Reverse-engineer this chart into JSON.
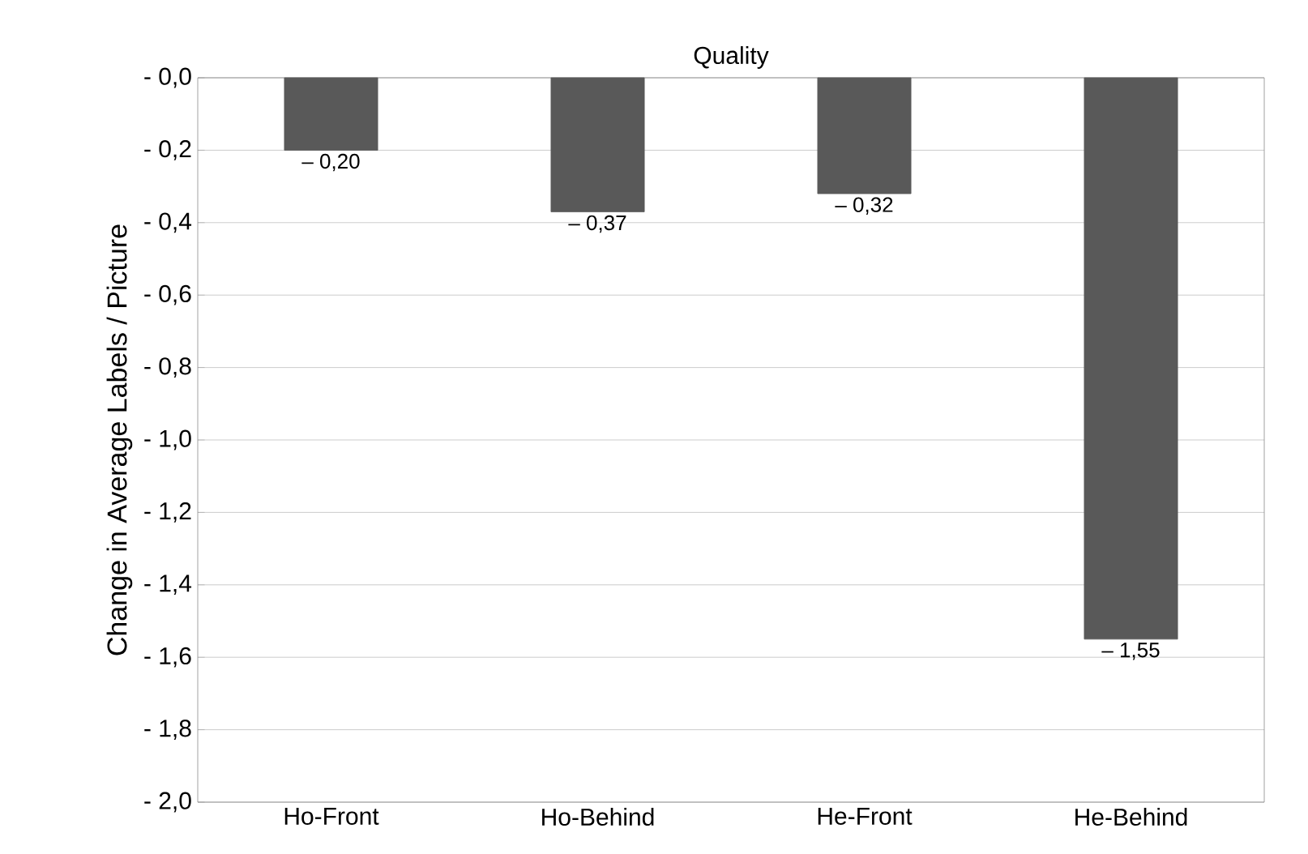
{
  "chart_data": {
    "type": "bar",
    "title": "Quality",
    "ylabel": "Change in Average Labels / Picture",
    "categories": [
      "Ho-Front",
      "Ho-Behind",
      "He-Front",
      "He-Behind"
    ],
    "values": [
      -0.2,
      -0.37,
      -0.32,
      -1.55
    ],
    "value_labels": [
      "– 0,20",
      "– 0,37",
      "– 0,32",
      "– 1,55"
    ],
    "color": "#595959",
    "ylim": [
      -2.0,
      0.0
    ],
    "yticks": [
      {
        "value": 0.0,
        "label": "- 0,0"
      },
      {
        "value": -0.2,
        "label": "- 0,2"
      },
      {
        "value": -0.4,
        "label": "- 0,4"
      },
      {
        "value": -0.6,
        "label": "- 0,6"
      },
      {
        "value": -0.8,
        "label": "- 0,8"
      },
      {
        "value": -1.0,
        "label": "- 1,0"
      },
      {
        "value": -1.2,
        "label": "- 1,2"
      },
      {
        "value": -1.4,
        "label": "- 1,4"
      },
      {
        "value": -1.6,
        "label": "- 1,6"
      },
      {
        "value": -1.8,
        "label": "- 1,8"
      },
      {
        "value": -2.0,
        "label": "- 2,0"
      }
    ],
    "grid": "y"
  }
}
